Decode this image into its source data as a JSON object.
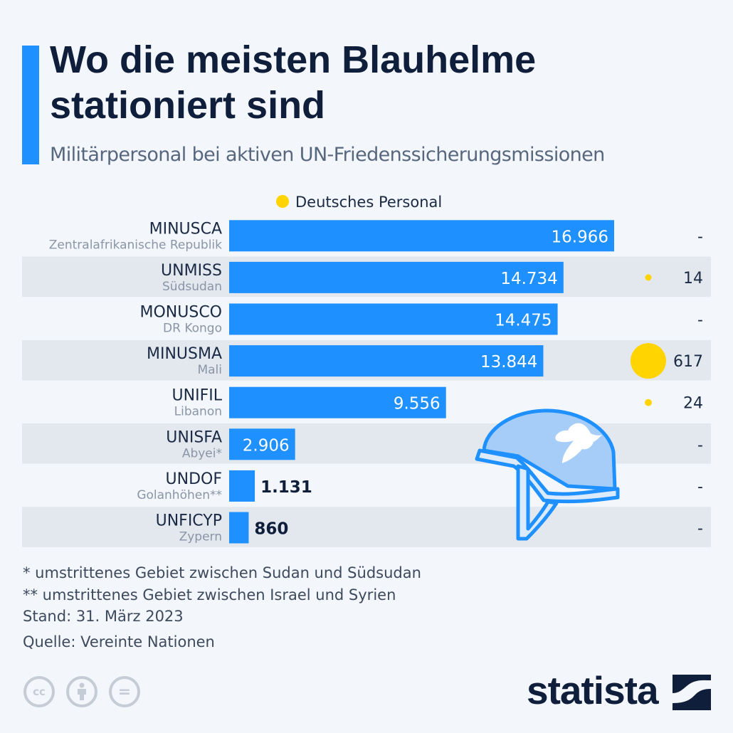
{
  "title": "Wo die meisten Blauhelme stationiert sind",
  "subtitle": "Militärpersonal bei aktiven UN-Friedenssicherungsmissionen",
  "legend_label": "Deutsches Personal",
  "footnotes": [
    "*   umstrittenes Gebiet zwischen Sudan und Südsudan",
    "** umstrittenes Gebiet zwischen Israel und Syrien"
  ],
  "stand": "Stand: 31. März 2023",
  "source": "Quelle: Vereinte Nationen",
  "brand": "statista",
  "license_icons": [
    "cc-icon",
    "by-person-icon",
    "no-derivatives-icon"
  ],
  "illustration": "helmet-dove-icon",
  "colors": {
    "bar": "#1e90ff",
    "dot": "#ffd400",
    "row_band": "#e3e8ef",
    "title": "#0f1e3a"
  },
  "chart_data": {
    "type": "bar",
    "orientation": "horizontal",
    "categories": [
      "MINUSCA",
      "UNMISS",
      "MONUSCO",
      "MINUSMA",
      "UNIFIL",
      "UNISFA",
      "UNDOF",
      "UNFICYP"
    ],
    "sublabels": [
      "Zentralafrikanische Republik",
      "Südsudan",
      "DR Kongo",
      "Mali",
      "Libanon",
      "Abyei*",
      "Golanhöhen**",
      "Zypern"
    ],
    "values": [
      16966,
      14734,
      14475,
      13844,
      9556,
      2906,
      1131,
      860
    ],
    "value_labels": [
      "16.966",
      "14.734",
      "14.475",
      "13.844",
      "9.556",
      "2.906",
      "1.131",
      "860"
    ],
    "german_personnel": [
      null,
      14,
      null,
      617,
      24,
      null,
      null,
      null
    ],
    "german_labels": [
      "-",
      "14",
      "-",
      "617",
      "24",
      "-",
      "-",
      "-"
    ],
    "xlim": [
      0,
      16966
    ],
    "grid": false,
    "legend": {
      "entries": [
        "Deutsches Personal"
      ],
      "position": "top"
    }
  }
}
